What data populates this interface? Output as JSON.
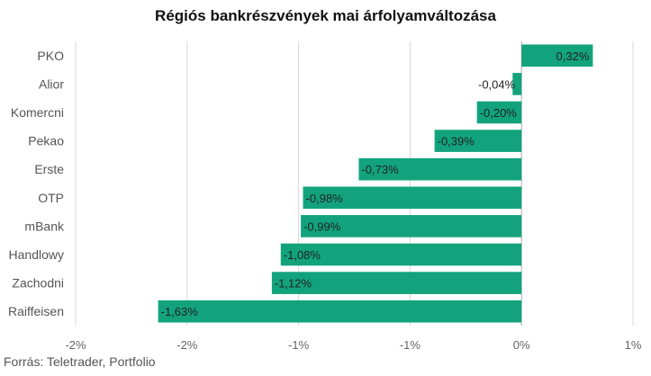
{
  "chart_data": {
    "type": "bar",
    "orientation": "horizontal",
    "title": "Régiós bankrészvények mai árfolyamváltozása",
    "categories": [
      "PKO",
      "Alior",
      "Komercni",
      "Pekao",
      "Erste",
      "OTP",
      "mBank",
      "Handlowy",
      "Zachodni",
      "Raiffeisen"
    ],
    "values": [
      0.32,
      -0.04,
      -0.2,
      -0.39,
      -0.73,
      -0.98,
      -0.99,
      -1.08,
      -1.12,
      -1.63
    ],
    "value_labels": [
      "0,32%",
      "-0,04%",
      "-0,20%",
      "-0,39%",
      "-0,73%",
      "-0,98%",
      "-0,99%",
      "-1,08%",
      "-1,12%",
      "-1,63%"
    ],
    "x_ticks": [
      {
        "value": -2.0,
        "label": "-2%"
      },
      {
        "value": -1.5,
        "label": "-2%"
      },
      {
        "value": -1.0,
        "label": "-1%"
      },
      {
        "value": -0.5,
        "label": "-1%"
      },
      {
        "value": 0.0,
        "label": "0%"
      },
      {
        "value": 0.5,
        "label": "1%"
      }
    ],
    "xlim": [
      -2.0,
      0.5
    ],
    "xlabel": "",
    "ylabel": "",
    "grid": true,
    "bar_color": "#12a37d",
    "grid_color": "#d9d9d9",
    "zero_line_color": "#aaaaaa"
  },
  "source": "Forrás: Teletrader, Portfolio"
}
